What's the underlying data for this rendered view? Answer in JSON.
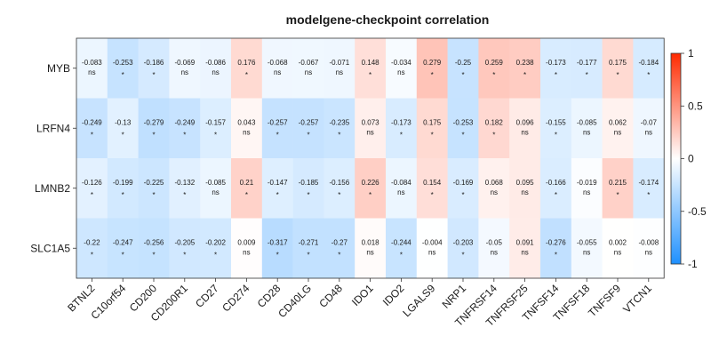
{
  "chart_data": {
    "type": "heatmap",
    "title": "modelgene-checkpoint correlation",
    "rows": [
      "MYB",
      "LRFN4",
      "LMNB2",
      "SLC1A5"
    ],
    "columns": [
      "BTNL2",
      "C10orf54",
      "CD200",
      "CD200R1",
      "CD27",
      "CD274",
      "CD28",
      "CD40LG",
      "CD48",
      "IDO1",
      "IDO2",
      "LGALS9",
      "NRP1",
      "TNFRSF14",
      "TNFRSF25",
      "TNFSF14",
      "TNFSF18",
      "TNFSF9",
      "VTCN1"
    ],
    "values": [
      [
        "-0.083",
        "-0.253",
        "-0.186",
        "-0.069",
        "-0.086",
        "0.176",
        "-0.068",
        "-0.067",
        "-0.071",
        "0.148",
        "-0.034",
        "0.279",
        "-0.25",
        "0.259",
        "0.238",
        "-0.173",
        "-0.177",
        "0.175",
        "-0.184"
      ],
      [
        "-0.249",
        "-0.13",
        "-0.279",
        "-0.249",
        "-0.157",
        "0.043",
        "-0.257",
        "-0.257",
        "-0.235",
        "0.073",
        "-0.173",
        "0.175",
        "-0.253",
        "0.182",
        "0.096",
        "-0.155",
        "-0.085",
        "0.062",
        "-0.07"
      ],
      [
        "-0.126",
        "-0.199",
        "-0.225",
        "-0.132",
        "-0.085",
        "0.21",
        "-0.147",
        "-0.185",
        "-0.156",
        "0.226",
        "-0.084",
        "0.154",
        "-0.169",
        "0.068",
        "0.095",
        "-0.166",
        "-0.019",
        "0.215",
        "-0.174"
      ],
      [
        "-0.22",
        "-0.247",
        "-0.256",
        "-0.205",
        "-0.202",
        "0.009",
        "-0.317",
        "-0.271",
        "-0.27",
        "0.018",
        "-0.244",
        "-0.004",
        "-0.203",
        "-0.05",
        "0.091",
        "-0.276",
        "-0.055",
        "0.002",
        "-0.008"
      ]
    ],
    "significance": [
      [
        "ns",
        "*",
        "*",
        "ns",
        "ns",
        "*",
        "ns",
        "ns",
        "ns",
        "*",
        "ns",
        "*",
        "*",
        "*",
        "*",
        "*",
        "*",
        "*",
        "*"
      ],
      [
        "*",
        "*",
        "*",
        "*",
        "*",
        "ns",
        "*",
        "*",
        "*",
        "ns",
        "*",
        "*",
        "*",
        "*",
        "ns",
        "*",
        "ns",
        "ns",
        "ns"
      ],
      [
        "*",
        "*",
        "*",
        "*",
        "ns",
        "*",
        "*",
        "*",
        "*",
        "*",
        "ns",
        "*",
        "*",
        "ns",
        "ns",
        "*",
        "ns",
        "*",
        "*"
      ],
      [
        "*",
        "*",
        "*",
        "*",
        "*",
        "ns",
        "*",
        "*",
        "*",
        "ns",
        "*",
        "ns",
        "*",
        "ns",
        "ns",
        "*",
        "ns",
        "ns",
        "ns"
      ]
    ],
    "color_scale": {
      "min": -1,
      "max": 1,
      "low_color": "#1e90ff",
      "mid_color": "#ffffff",
      "high_color": "#ff2a00",
      "ticks": [
        "1",
        "0.5",
        "0",
        "-0.5",
        "-1"
      ]
    },
    "legend_placement": "right"
  }
}
